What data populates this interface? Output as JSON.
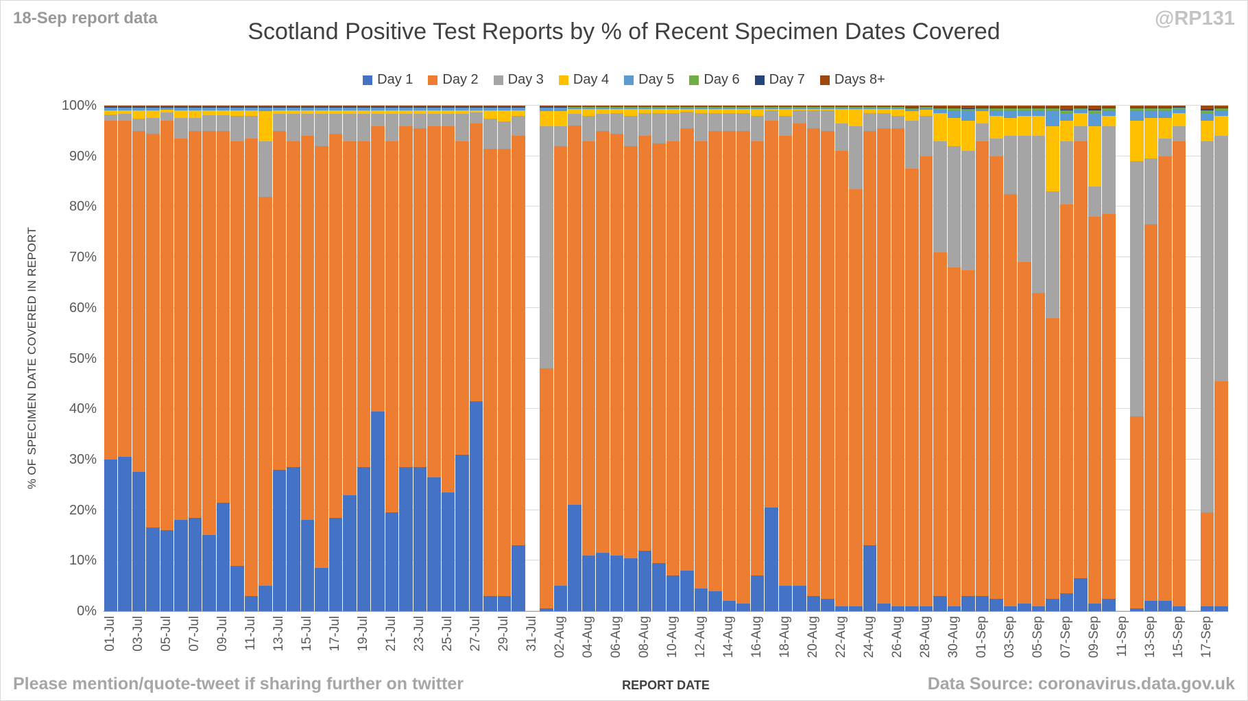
{
  "header": {
    "note": "18-Sep report data",
    "handle": "@RP131"
  },
  "footer": {
    "left": "Please mention/quote-tweet if sharing further on twitter",
    "right": "Data Source: coronavirus.data.gov.uk"
  },
  "chart_data": {
    "type": "bar",
    "stacked": true,
    "stacked_100_percent": true,
    "title": "Scotland Positive Test Reports by % of Recent Specimen Dates Covered",
    "xlabel": "REPORT DATE",
    "ylabel": "% OF SPECIMEN DATE COVERED IN REPORT",
    "ylim": [
      0,
      100
    ],
    "yticks": [
      "0%",
      "10%",
      "20%",
      "30%",
      "40%",
      "50%",
      "60%",
      "70%",
      "80%",
      "90%",
      "100%"
    ],
    "grid": "horizontal",
    "legend_position": "top",
    "label_every": 2,
    "missing_dates": [
      "31-Jul",
      "11-Sep",
      "16-Sep"
    ],
    "series": [
      {
        "name": "Day 1",
        "color": "#4472C4"
      },
      {
        "name": "Day 2",
        "color": "#ED7D31"
      },
      {
        "name": "Day 3",
        "color": "#A5A5A5"
      },
      {
        "name": "Day 4",
        "color": "#FFC000"
      },
      {
        "name": "Day 5",
        "color": "#5B9BD5"
      },
      {
        "name": "Day 6",
        "color": "#70AD47"
      },
      {
        "name": "Day 7",
        "color": "#264478"
      },
      {
        "name": "Days 8+",
        "color": "#9E480E"
      }
    ],
    "categories": [
      "01-Jul",
      "02-Jul",
      "03-Jul",
      "04-Jul",
      "05-Jul",
      "06-Jul",
      "07-Jul",
      "08-Jul",
      "09-Jul",
      "10-Jul",
      "11-Jul",
      "12-Jul",
      "13-Jul",
      "14-Jul",
      "15-Jul",
      "16-Jul",
      "17-Jul",
      "18-Jul",
      "19-Jul",
      "20-Jul",
      "21-Jul",
      "22-Jul",
      "23-Jul",
      "24-Jul",
      "25-Jul",
      "26-Jul",
      "27-Jul",
      "28-Jul",
      "29-Jul",
      "30-Jul",
      "31-Jul",
      "01-Aug",
      "02-Aug",
      "03-Aug",
      "04-Aug",
      "05-Aug",
      "06-Aug",
      "07-Aug",
      "08-Aug",
      "09-Aug",
      "10-Aug",
      "11-Aug",
      "12-Aug",
      "13-Aug",
      "14-Aug",
      "15-Aug",
      "16-Aug",
      "17-Aug",
      "18-Aug",
      "19-Aug",
      "20-Aug",
      "21-Aug",
      "22-Aug",
      "23-Aug",
      "24-Aug",
      "25-Aug",
      "26-Aug",
      "27-Aug",
      "28-Aug",
      "29-Aug",
      "30-Aug",
      "31-Aug",
      "01-Sep",
      "02-Sep",
      "03-Sep",
      "04-Sep",
      "05-Sep",
      "06-Sep",
      "07-Sep",
      "08-Sep",
      "09-Sep",
      "10-Sep",
      "11-Sep",
      "12-Sep",
      "13-Sep",
      "14-Sep",
      "15-Sep",
      "16-Sep",
      "17-Sep",
      "18-Sep"
    ],
    "bars": [
      [
        30,
        67,
        1.3,
        0.8,
        0.3,
        0.2,
        0.1,
        0.3
      ],
      [
        30.5,
        66.5,
        1.4,
        0.7,
        0.3,
        0.2,
        0.1,
        0.3
      ],
      [
        27.5,
        67.5,
        2.4,
        1.6,
        0.4,
        0.2,
        0.1,
        0.3
      ],
      [
        16.5,
        78,
        3,
        1.5,
        0.4,
        0.2,
        0.1,
        0.3
      ],
      [
        16,
        81,
        1.6,
        0.6,
        0.2,
        0.2,
        0.1,
        0.3
      ],
      [
        18,
        75.5,
        4,
        1.5,
        0.4,
        0.2,
        0.1,
        0.3
      ],
      [
        18.5,
        76.5,
        2.6,
        1.4,
        0.4,
        0.2,
        0.1,
        0.3
      ],
      [
        15,
        80,
        3.1,
        1,
        0.3,
        0.2,
        0.1,
        0.3
      ],
      [
        21.5,
        73.5,
        3.1,
        1,
        0.3,
        0.2,
        0.1,
        0.3
      ],
      [
        9,
        84,
        4.9,
        1.2,
        0.3,
        0.2,
        0.1,
        0.3
      ],
      [
        3,
        90.5,
        4.4,
        1.2,
        0.3,
        0.2,
        0.1,
        0.3
      ],
      [
        5,
        77,
        11,
        5.9,
        0.5,
        0.2,
        0.1,
        0.3
      ],
      [
        28,
        67,
        3.4,
        0.7,
        0.3,
        0.2,
        0.1,
        0.3
      ],
      [
        28.5,
        64.5,
        5.4,
        0.7,
        0.3,
        0.2,
        0.1,
        0.3
      ],
      [
        18,
        76,
        4.4,
        0.7,
        0.3,
        0.2,
        0.1,
        0.3
      ],
      [
        8.5,
        83.5,
        6.4,
        0.7,
        0.3,
        0.2,
        0.1,
        0.3
      ],
      [
        18.5,
        76,
        3.9,
        0.7,
        0.3,
        0.2,
        0.1,
        0.3
      ],
      [
        23,
        70,
        5.4,
        0.7,
        0.3,
        0.2,
        0.1,
        0.3
      ],
      [
        28.5,
        64.5,
        5.4,
        0.7,
        0.3,
        0.2,
        0.1,
        0.3
      ],
      [
        39.5,
        56.5,
        2.4,
        0.7,
        0.3,
        0.2,
        0.1,
        0.3
      ],
      [
        19.5,
        73.5,
        5.4,
        0.7,
        0.3,
        0.2,
        0.1,
        0.3
      ],
      [
        28.5,
        67.5,
        2.4,
        0.7,
        0.3,
        0.2,
        0.1,
        0.3
      ],
      [
        28.5,
        67,
        2.9,
        0.7,
        0.3,
        0.2,
        0.1,
        0.3
      ],
      [
        26.5,
        69.5,
        2.4,
        0.7,
        0.3,
        0.2,
        0.1,
        0.3
      ],
      [
        23.5,
        72.5,
        2.4,
        0.7,
        0.3,
        0.2,
        0.1,
        0.3
      ],
      [
        31,
        62,
        5.4,
        0.7,
        0.3,
        0.2,
        0.1,
        0.3
      ],
      [
        41.5,
        55,
        2.1,
        0.5,
        0.3,
        0.2,
        0.1,
        0.3
      ],
      [
        3,
        88.5,
        5.9,
        1.7,
        0.3,
        0.2,
        0.1,
        0.3
      ],
      [
        3,
        88.5,
        5.4,
        2.2,
        0.3,
        0.2,
        0.1,
        0.3
      ],
      [
        13,
        81,
        4,
        1.1,
        0.3,
        0.2,
        0.1,
        0.3
      ],
      null,
      [
        0.5,
        47.5,
        48,
        2.9,
        0.5,
        0.2,
        0.1,
        0.3
      ],
      [
        5,
        87,
        4,
        2.9,
        0.5,
        0.2,
        0.1,
        0.3
      ],
      [
        21,
        75,
        2.4,
        0.9,
        0.2,
        0.2,
        0.1,
        0.2
      ],
      [
        11,
        82,
        5,
        1.3,
        0.2,
        0.2,
        0.1,
        0.2
      ],
      [
        11.5,
        83.5,
        3.4,
        0.9,
        0.2,
        0.2,
        0.1,
        0.2
      ],
      [
        11,
        83.5,
        4,
        0.8,
        0.2,
        0.2,
        0.1,
        0.2
      ],
      [
        10.5,
        81.5,
        6,
        1.3,
        0.2,
        0.2,
        0.1,
        0.2
      ],
      [
        12,
        82,
        4.5,
        0.8,
        0.2,
        0.2,
        0.1,
        0.2
      ],
      [
        9.5,
        83,
        6,
        0.8,
        0.2,
        0.2,
        0.1,
        0.2
      ],
      [
        7,
        86,
        5.5,
        0.8,
        0.2,
        0.2,
        0.1,
        0.2
      ],
      [
        8,
        87.5,
        3.3,
        0.5,
        0.2,
        0.2,
        0.1,
        0.2
      ],
      [
        4.5,
        88.5,
        5.5,
        0.8,
        0.2,
        0.2,
        0.1,
        0.2
      ],
      [
        4,
        91,
        3.5,
        0.8,
        0.2,
        0.2,
        0.1,
        0.2
      ],
      [
        2,
        93,
        3.5,
        0.8,
        0.2,
        0.2,
        0.1,
        0.2
      ],
      [
        1.5,
        93.5,
        3.5,
        0.8,
        0.2,
        0.2,
        0.1,
        0.2
      ],
      [
        7,
        86,
        5,
        1.3,
        0.2,
        0.2,
        0.1,
        0.2
      ],
      [
        20.5,
        76.5,
        2,
        0.3,
        0.2,
        0.2,
        0.1,
        0.2
      ],
      [
        5,
        89,
        4,
        1.3,
        0.2,
        0.2,
        0.1,
        0.2
      ],
      [
        5,
        91.5,
        2.5,
        0.3,
        0.2,
        0.2,
        0.1,
        0.2
      ],
      [
        3,
        92.5,
        3.5,
        0.3,
        0.2,
        0.2,
        0.1,
        0.2
      ],
      [
        2.5,
        92.5,
        4,
        0.3,
        0.2,
        0.2,
        0.1,
        0.2
      ],
      [
        1,
        90,
        5.5,
        2.8,
        0.2,
        0.2,
        0.1,
        0.2
      ],
      [
        1,
        82.5,
        12.5,
        3.3,
        0.2,
        0.2,
        0.1,
        0.2
      ],
      [
        13,
        82,
        3.5,
        0.8,
        0.2,
        0.2,
        0.1,
        0.2
      ],
      [
        1.5,
        94,
        3,
        0.8,
        0.2,
        0.2,
        0.1,
        0.2
      ],
      [
        1,
        94.5,
        2.5,
        1.3,
        0.2,
        0.2,
        0.1,
        0.2
      ],
      [
        1,
        86.5,
        9.5,
        1.9,
        0.4,
        0.2,
        0.1,
        0.4
      ],
      [
        1,
        89,
        8,
        1.2,
        0.3,
        0.2,
        0.1,
        0.2
      ],
      [
        3,
        68,
        22,
        5.5,
        0.7,
        0.3,
        0.1,
        0.4
      ],
      [
        1,
        67,
        24,
        5.5,
        1.5,
        0.4,
        0.2,
        0.4
      ],
      [
        3,
        64.5,
        23.5,
        6,
        1.9,
        0.4,
        0.2,
        0.5
      ],
      [
        3,
        90,
        3.5,
        2.4,
        0.4,
        0.2,
        0.1,
        0.4
      ],
      [
        2.5,
        87.5,
        3.5,
        4.5,
        1,
        0.4,
        0.2,
        0.4
      ],
      [
        1,
        81.5,
        11.5,
        3.5,
        1.5,
        0.4,
        0.2,
        0.4
      ],
      [
        1.5,
        67.5,
        25,
        4,
        1,
        0.4,
        0.2,
        0.4
      ],
      [
        1,
        62,
        31,
        4,
        1,
        0.4,
        0.2,
        0.4
      ],
      [
        2.5,
        55.5,
        25,
        13,
        3,
        0.4,
        0.2,
        0.4
      ],
      [
        3.5,
        77,
        12.5,
        4,
        1.5,
        0.5,
        0.2,
        0.8
      ],
      [
        6.5,
        86.5,
        3,
        2.5,
        0.8,
        0.2,
        0.1,
        0.4
      ],
      [
        1.5,
        76.5,
        6,
        12,
        2.5,
        0.5,
        0.3,
        0.7
      ],
      [
        2.5,
        76,
        17.5,
        2,
        1,
        0.4,
        0.2,
        0.4
      ],
      null,
      [
        0.5,
        38,
        50.5,
        8,
        2,
        0.4,
        0.2,
        0.4
      ],
      [
        2,
        74.5,
        13,
        8,
        1.5,
        0.4,
        0.2,
        0.4
      ],
      [
        2,
        88,
        3.5,
        4,
        1.5,
        0.4,
        0.2,
        0.4
      ],
      [
        1,
        92,
        3,
        2.5,
        0.8,
        0.3,
        0.1,
        0.3
      ],
      null,
      [
        1,
        18.5,
        73.5,
        4,
        1.5,
        0.5,
        0.3,
        0.7
      ],
      [
        1,
        44.5,
        48.5,
        4,
        1,
        0.4,
        0.2,
        0.4
      ]
    ]
  }
}
